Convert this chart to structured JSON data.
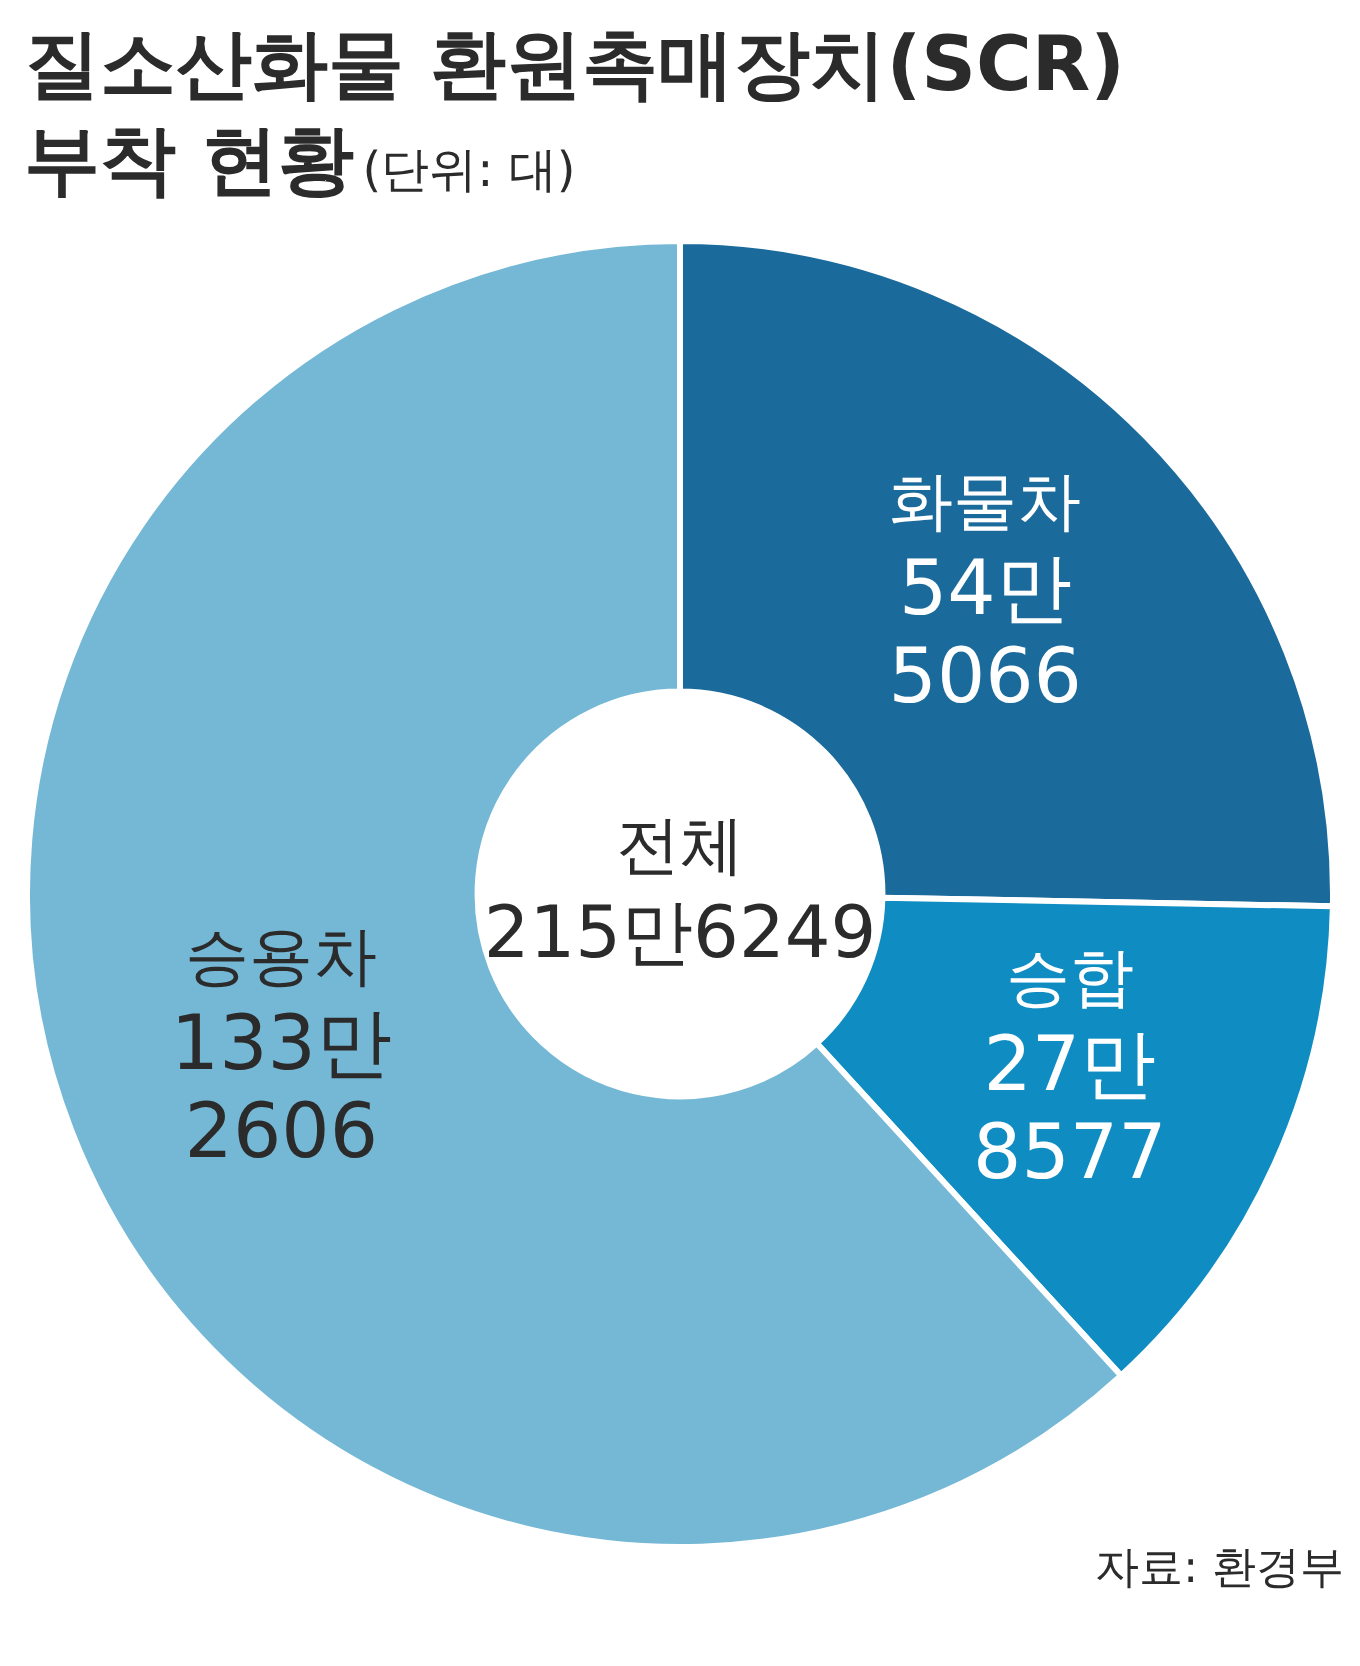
{
  "chart_data": {
    "type": "donut",
    "title": "질소산화물 환원촉매장치(SCR) 부착 현황",
    "subtitle": "(단위: 대)",
    "categories": [
      "화물차",
      "승합",
      "승용차"
    ],
    "values": [
      25.3,
      12.9,
      61.8
    ],
    "colors": [
      "#1b6a9c",
      "#0f8dc2",
      "#74b8d6"
    ],
    "legend": false,
    "annotations": [
      "54만 5066",
      "27만 8577",
      "133만 2606",
      "전체 215만6249",
      "자료: 환경부"
    ]
  }
}
